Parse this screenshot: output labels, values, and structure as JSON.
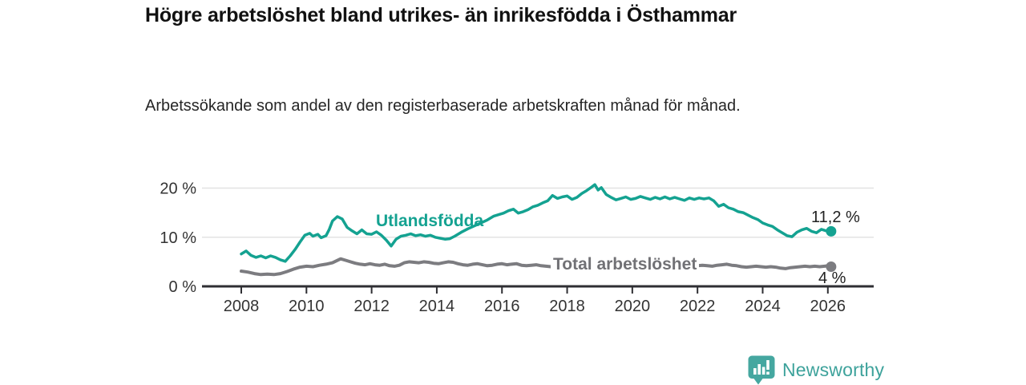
{
  "title": "Högre arbetslöshet bland utrikes- än inrikesfödda i Östhammar",
  "subtitle": "Arbetssökande som andel av den registerbaserade arbetskraften månad för månad.",
  "branding": {
    "name": "Newsworthy",
    "icon": "newsworthy-speech-bubble-bar-chart-icon",
    "color": "#3da29b"
  },
  "colors": {
    "foreign_born_line": "#14a291",
    "total_line": "#7c7c80",
    "axis": "#2f2f33",
    "gridline": "#e3e3e3",
    "tick_text": "#333333"
  },
  "chart_data": {
    "type": "line",
    "title": "Högre arbetslöshet bland utrikes- än inrikesfödda i Östhammar",
    "subtitle": "Arbetssökande som andel av den registerbaserade arbetskraften månad för månad.",
    "x_axis": {
      "ticks": [
        2008,
        2010,
        2012,
        2014,
        2016,
        2018,
        2020,
        2022,
        2024,
        2026
      ],
      "range": [
        2006.8,
        2027.4
      ],
      "grid": false
    },
    "y_axis": {
      "ticks": [
        {
          "value": 0,
          "label": "0 %"
        },
        {
          "value": 10,
          "label": "10 %"
        },
        {
          "value": 20,
          "label": "20 %"
        }
      ],
      "range": [
        0,
        22.5
      ],
      "grid": true
    },
    "legend_position": "inline-labels",
    "series": [
      {
        "name": "Utlandsfödda",
        "color": "#14a291",
        "end_label": "11,2 %",
        "end_value": 11.2,
        "points": [
          [
            2008.0,
            6.6
          ],
          [
            2008.15,
            7.2
          ],
          [
            2008.3,
            6.3
          ],
          [
            2008.45,
            5.9
          ],
          [
            2008.6,
            6.2
          ],
          [
            2008.75,
            5.8
          ],
          [
            2008.9,
            6.2
          ],
          [
            2009.05,
            5.9
          ],
          [
            2009.2,
            5.4
          ],
          [
            2009.35,
            5.1
          ],
          [
            2009.5,
            6.2
          ],
          [
            2009.65,
            7.5
          ],
          [
            2009.8,
            9.0
          ],
          [
            2009.95,
            10.4
          ],
          [
            2010.1,
            10.8
          ],
          [
            2010.2,
            10.2
          ],
          [
            2010.35,
            10.6
          ],
          [
            2010.45,
            9.9
          ],
          [
            2010.6,
            10.3
          ],
          [
            2010.7,
            11.6
          ],
          [
            2010.8,
            13.3
          ],
          [
            2010.95,
            14.2
          ],
          [
            2011.1,
            13.7
          ],
          [
            2011.25,
            12.0
          ],
          [
            2011.4,
            11.3
          ],
          [
            2011.55,
            10.7
          ],
          [
            2011.7,
            11.5
          ],
          [
            2011.85,
            10.7
          ],
          [
            2012.0,
            10.6
          ],
          [
            2012.15,
            11.1
          ],
          [
            2012.3,
            10.4
          ],
          [
            2012.45,
            9.4
          ],
          [
            2012.6,
            8.2
          ],
          [
            2012.75,
            9.6
          ],
          [
            2012.9,
            10.2
          ],
          [
            2013.05,
            10.4
          ],
          [
            2013.2,
            10.7
          ],
          [
            2013.35,
            10.3
          ],
          [
            2013.5,
            10.5
          ],
          [
            2013.65,
            10.2
          ],
          [
            2013.8,
            10.4
          ],
          [
            2013.95,
            10.0
          ],
          [
            2014.1,
            9.8
          ],
          [
            2014.25,
            9.6
          ],
          [
            2014.4,
            9.7
          ],
          [
            2014.55,
            10.2
          ],
          [
            2014.75,
            11.0
          ],
          [
            2014.95,
            11.7
          ],
          [
            2015.15,
            12.3
          ],
          [
            2015.35,
            12.9
          ],
          [
            2015.55,
            13.5
          ],
          [
            2015.75,
            14.3
          ],
          [
            2015.9,
            14.6
          ],
          [
            2016.05,
            14.9
          ],
          [
            2016.2,
            15.4
          ],
          [
            2016.35,
            15.7
          ],
          [
            2016.5,
            14.9
          ],
          [
            2016.65,
            15.2
          ],
          [
            2016.8,
            15.6
          ],
          [
            2016.95,
            16.2
          ],
          [
            2017.1,
            16.5
          ],
          [
            2017.25,
            17.0
          ],
          [
            2017.4,
            17.4
          ],
          [
            2017.55,
            18.5
          ],
          [
            2017.7,
            17.9
          ],
          [
            2017.85,
            18.2
          ],
          [
            2018.0,
            18.4
          ],
          [
            2018.15,
            17.7
          ],
          [
            2018.3,
            18.1
          ],
          [
            2018.45,
            18.9
          ],
          [
            2018.6,
            19.5
          ],
          [
            2018.75,
            20.2
          ],
          [
            2018.85,
            20.7
          ],
          [
            2018.95,
            19.6
          ],
          [
            2019.05,
            20.1
          ],
          [
            2019.2,
            18.7
          ],
          [
            2019.35,
            18.1
          ],
          [
            2019.5,
            17.6
          ],
          [
            2019.65,
            17.9
          ],
          [
            2019.8,
            18.2
          ],
          [
            2019.95,
            17.7
          ],
          [
            2020.1,
            17.9
          ],
          [
            2020.25,
            18.3
          ],
          [
            2020.4,
            18.0
          ],
          [
            2020.55,
            17.7
          ],
          [
            2020.7,
            18.1
          ],
          [
            2020.85,
            17.8
          ],
          [
            2021.0,
            18.2
          ],
          [
            2021.15,
            17.8
          ],
          [
            2021.3,
            18.1
          ],
          [
            2021.45,
            17.8
          ],
          [
            2021.6,
            17.5
          ],
          [
            2021.75,
            18.0
          ],
          [
            2021.9,
            17.7
          ],
          [
            2022.05,
            18.0
          ],
          [
            2022.2,
            17.8
          ],
          [
            2022.35,
            18.0
          ],
          [
            2022.5,
            17.4
          ],
          [
            2022.65,
            16.3
          ],
          [
            2022.8,
            16.7
          ],
          [
            2022.95,
            16.0
          ],
          [
            2023.1,
            15.7
          ],
          [
            2023.25,
            15.2
          ],
          [
            2023.4,
            15.0
          ],
          [
            2023.55,
            14.5
          ],
          [
            2023.7,
            14.0
          ],
          [
            2023.85,
            13.6
          ],
          [
            2024.0,
            12.9
          ],
          [
            2024.15,
            12.5
          ],
          [
            2024.3,
            12.2
          ],
          [
            2024.45,
            11.5
          ],
          [
            2024.6,
            10.9
          ],
          [
            2024.75,
            10.3
          ],
          [
            2024.9,
            10.1
          ],
          [
            2025.05,
            11.0
          ],
          [
            2025.2,
            11.5
          ],
          [
            2025.35,
            11.8
          ],
          [
            2025.5,
            11.2
          ],
          [
            2025.65,
            10.9
          ],
          [
            2025.8,
            11.6
          ],
          [
            2025.95,
            11.3
          ],
          [
            2026.1,
            11.2
          ]
        ]
      },
      {
        "name": "Total arbetslöshet",
        "color": "#7c7c80",
        "end_label": "4 %",
        "end_value": 4.0,
        "points": [
          [
            2008.0,
            3.1
          ],
          [
            2008.2,
            2.9
          ],
          [
            2008.4,
            2.6
          ],
          [
            2008.6,
            2.4
          ],
          [
            2008.8,
            2.5
          ],
          [
            2009.0,
            2.4
          ],
          [
            2009.2,
            2.6
          ],
          [
            2009.4,
            3.0
          ],
          [
            2009.6,
            3.5
          ],
          [
            2009.8,
            3.9
          ],
          [
            2010.0,
            4.1
          ],
          [
            2010.2,
            4.0
          ],
          [
            2010.4,
            4.3
          ],
          [
            2010.6,
            4.5
          ],
          [
            2010.8,
            4.8
          ],
          [
            2011.05,
            5.6
          ],
          [
            2011.2,
            5.3
          ],
          [
            2011.35,
            5.0
          ],
          [
            2011.5,
            4.7
          ],
          [
            2011.65,
            4.5
          ],
          [
            2011.8,
            4.4
          ],
          [
            2011.95,
            4.6
          ],
          [
            2012.1,
            4.4
          ],
          [
            2012.25,
            4.3
          ],
          [
            2012.4,
            4.5
          ],
          [
            2012.55,
            4.2
          ],
          [
            2012.7,
            4.1
          ],
          [
            2012.85,
            4.3
          ],
          [
            2013.0,
            4.8
          ],
          [
            2013.15,
            5.0
          ],
          [
            2013.3,
            4.9
          ],
          [
            2013.45,
            4.8
          ],
          [
            2013.6,
            5.0
          ],
          [
            2013.75,
            4.9
          ],
          [
            2013.9,
            4.7
          ],
          [
            2014.05,
            4.6
          ],
          [
            2014.2,
            4.8
          ],
          [
            2014.35,
            5.0
          ],
          [
            2014.5,
            4.9
          ],
          [
            2014.65,
            4.6
          ],
          [
            2014.8,
            4.4
          ],
          [
            2014.95,
            4.3
          ],
          [
            2015.1,
            4.5
          ],
          [
            2015.25,
            4.6
          ],
          [
            2015.4,
            4.4
          ],
          [
            2015.55,
            4.2
          ],
          [
            2015.7,
            4.3
          ],
          [
            2015.85,
            4.5
          ],
          [
            2016.0,
            4.6
          ],
          [
            2016.15,
            4.4
          ],
          [
            2016.3,
            4.5
          ],
          [
            2016.45,
            4.6
          ],
          [
            2016.6,
            4.3
          ],
          [
            2016.75,
            4.2
          ],
          [
            2016.9,
            4.3
          ],
          [
            2017.05,
            4.4
          ],
          [
            2017.2,
            4.2
          ],
          [
            2017.35,
            4.1
          ],
          [
            2017.5,
            4.0
          ],
          [
            2017.65,
            4.2
          ],
          [
            2017.8,
            4.1
          ],
          [
            2017.95,
            4.3
          ],
          [
            2018.1,
            4.4
          ],
          [
            2018.25,
            4.2
          ],
          [
            2018.4,
            4.3
          ],
          [
            2018.55,
            4.5
          ],
          [
            2018.7,
            4.4
          ],
          [
            2018.85,
            4.6
          ],
          [
            2019.0,
            4.4
          ],
          [
            2019.15,
            4.3
          ],
          [
            2019.3,
            4.2
          ],
          [
            2019.45,
            4.4
          ],
          [
            2019.6,
            4.3
          ],
          [
            2019.75,
            4.2
          ],
          [
            2019.9,
            4.4
          ],
          [
            2020.05,
            4.5
          ],
          [
            2020.2,
            4.6
          ],
          [
            2020.35,
            4.7
          ],
          [
            2020.5,
            4.5
          ],
          [
            2020.65,
            4.4
          ],
          [
            2020.8,
            4.5
          ],
          [
            2020.95,
            4.3
          ],
          [
            2021.1,
            4.4
          ],
          [
            2021.25,
            4.5
          ],
          [
            2021.4,
            4.3
          ],
          [
            2021.55,
            4.2
          ],
          [
            2021.7,
            4.3
          ],
          [
            2021.85,
            4.4
          ],
          [
            2022.0,
            4.2
          ],
          [
            2022.15,
            4.3
          ],
          [
            2022.3,
            4.2
          ],
          [
            2022.45,
            4.1
          ],
          [
            2022.6,
            4.3
          ],
          [
            2022.75,
            4.4
          ],
          [
            2022.9,
            4.5
          ],
          [
            2023.05,
            4.3
          ],
          [
            2023.2,
            4.2
          ],
          [
            2023.35,
            4.0
          ],
          [
            2023.5,
            3.9
          ],
          [
            2023.65,
            4.0
          ],
          [
            2023.8,
            4.1
          ],
          [
            2023.95,
            4.0
          ],
          [
            2024.1,
            3.9
          ],
          [
            2024.25,
            4.0
          ],
          [
            2024.4,
            3.9
          ],
          [
            2024.55,
            3.7
          ],
          [
            2024.7,
            3.6
          ],
          [
            2024.85,
            3.8
          ],
          [
            2025.0,
            3.9
          ],
          [
            2025.15,
            4.0
          ],
          [
            2025.3,
            4.1
          ],
          [
            2025.45,
            4.0
          ],
          [
            2025.6,
            4.1
          ],
          [
            2025.75,
            4.0
          ],
          [
            2025.9,
            4.1
          ],
          [
            2026.0,
            4.2
          ],
          [
            2026.1,
            4.0
          ]
        ]
      }
    ]
  }
}
